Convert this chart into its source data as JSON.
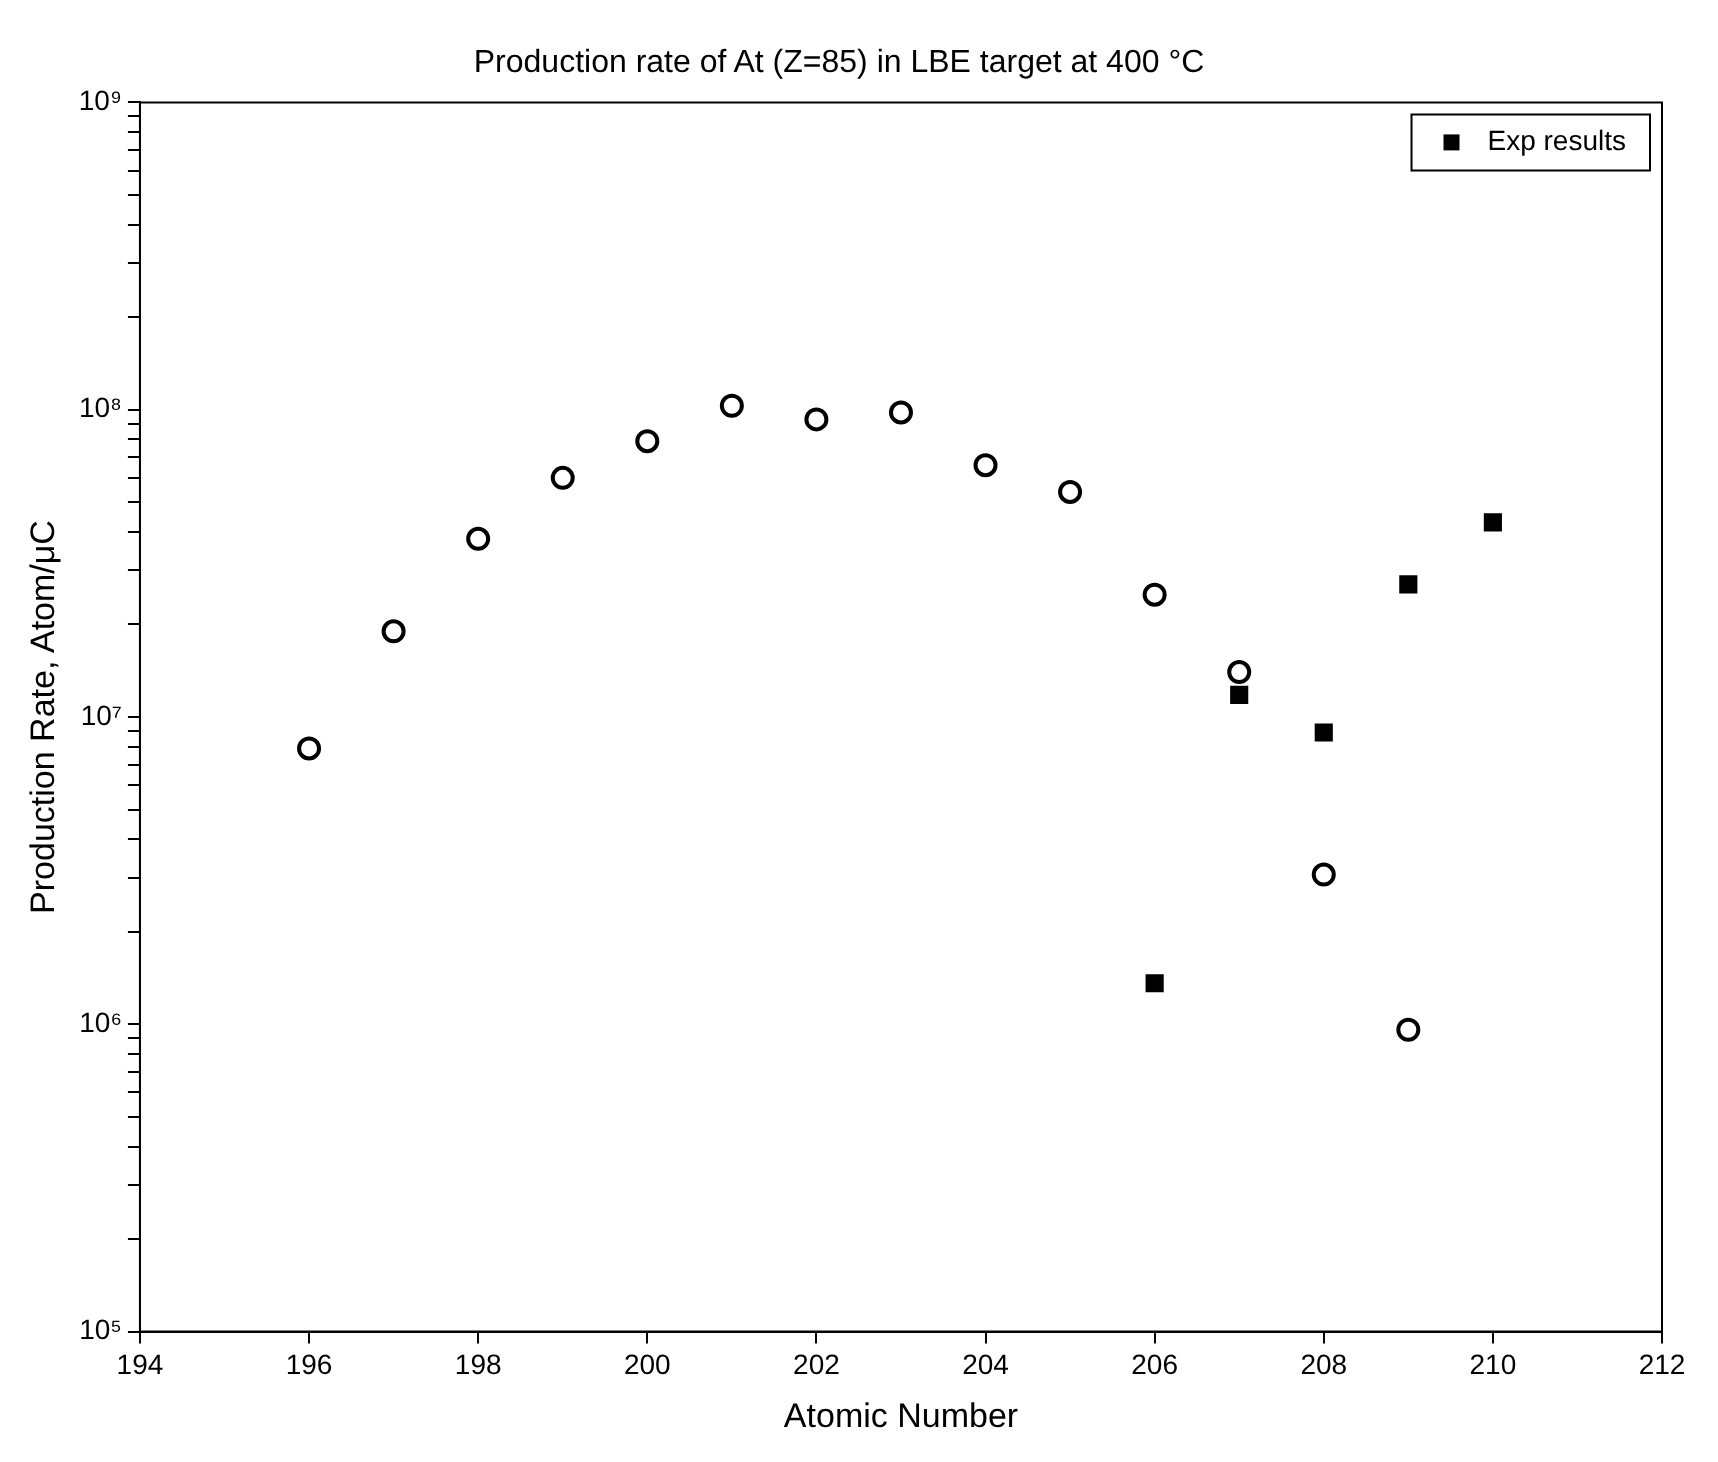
{
  "chart_data": {
    "type": "scatter",
    "title": "Production rate of At (Z=85) in LBE target at 400 °C",
    "xlabel": "Atomic Number",
    "ylabel": "Production Rate, Atom/μC",
    "xlim": [
      194,
      212
    ],
    "xticks": [
      194,
      196,
      198,
      200,
      202,
      204,
      206,
      208,
      210,
      212
    ],
    "ylim": [
      100000,
      1000000000
    ],
    "yticks": [
      {
        "value": 100000,
        "label": "10⁵"
      },
      {
        "value": 200000,
        "label": null
      },
      {
        "value": 300000,
        "label": null
      },
      {
        "value": 400000,
        "label": null
      },
      {
        "value": 500000,
        "label": null
      },
      {
        "value": 600000,
        "label": null
      },
      {
        "value": 700000,
        "label": null
      },
      {
        "value": 800000,
        "label": null
      },
      {
        "value": 900000,
        "label": null
      },
      {
        "value": 1000000,
        "label": "10⁶"
      },
      {
        "value": 2000000,
        "label": null
      },
      {
        "value": 3000000,
        "label": null
      },
      {
        "value": 4000000,
        "label": null
      },
      {
        "value": 5000000,
        "label": null
      },
      {
        "value": 6000000,
        "label": null
      },
      {
        "value": 7000000,
        "label": null
      },
      {
        "value": 8000000,
        "label": null
      },
      {
        "value": 9000000,
        "label": null
      },
      {
        "value": 10000000,
        "label": "10⁷"
      },
      {
        "value": 20000000,
        "label": null
      },
      {
        "value": 30000000,
        "label": null
      },
      {
        "value": 40000000,
        "label": null
      },
      {
        "value": 50000000,
        "label": null
      },
      {
        "value": 60000000,
        "label": null
      },
      {
        "value": 70000000,
        "label": null
      },
      {
        "value": 80000000,
        "label": null
      },
      {
        "value": 90000000,
        "label": null
      },
      {
        "value": 100000000,
        "label": "10⁸"
      },
      {
        "value": 200000000,
        "label": null
      },
      {
        "value": 300000000,
        "label": null
      },
      {
        "value": 400000000,
        "label": null
      },
      {
        "value": 500000000,
        "label": null
      },
      {
        "value": 600000000,
        "label": null
      },
      {
        "value": 700000000,
        "label": null
      },
      {
        "value": 800000000,
        "label": null
      },
      {
        "value": 900000000,
        "label": null
      },
      {
        "value": 1000000000,
        "label": "10⁹"
      }
    ],
    "log": "y",
    "grid": false,
    "legend": "top right",
    "series": [
      {
        "name": "Exp results",
        "color": "#000000",
        "marker": "square",
        "x": [
          206,
          207,
          208,
          209,
          210
        ],
        "values": [
          1360000,
          11800000,
          8900000,
          27000000,
          43000000
        ]
      },
      {
        "color": "#000000",
        "marker": "circle",
        "x": [
          196,
          197,
          198,
          199,
          200,
          201,
          202,
          203,
          204,
          205,
          206,
          207,
          208,
          209
        ],
        "values": [
          7900000,
          19000000,
          38000000,
          60000000,
          79000000,
          103000000,
          93000000,
          98000000,
          66000000,
          54000000,
          25000000,
          14000000,
          3070000,
          960000
        ]
      }
    ]
  }
}
